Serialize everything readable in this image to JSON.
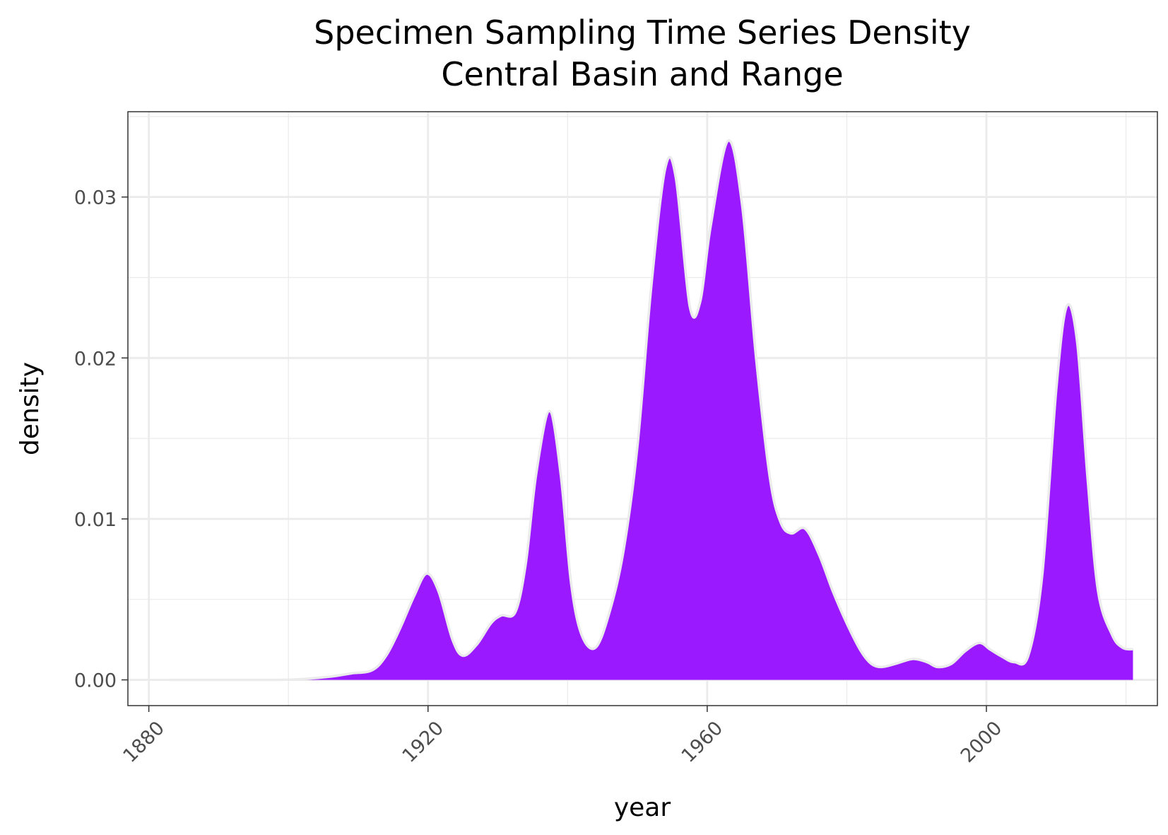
{
  "chart_data": {
    "type": "area",
    "title": "Specimen Sampling Time Series Density",
    "subtitle": "Central Basin and Range",
    "xlabel": "year",
    "ylabel": "density",
    "xlim": [
      1877,
      2024.5
    ],
    "ylim": [
      -0.0016,
      0.0353
    ],
    "x_ticks": [
      1880,
      1920,
      1960,
      2000
    ],
    "x_tick_labels": [
      "1880",
      "1920",
      "1960",
      "2000"
    ],
    "y_ticks": [
      0,
      0.01,
      0.02,
      0.03
    ],
    "y_tick_labels": [
      "0.00",
      "0.01",
      "0.02",
      "0.03"
    ],
    "grid": true,
    "legend": "none",
    "fill_color": "#9B19FF",
    "outline_color": "#EBEBEB",
    "x": [
      1883,
      1890,
      1898,
      1902,
      1906,
      1909,
      1912,
      1914,
      1916,
      1918,
      1919.8,
      1921.5,
      1923.5,
      1925,
      1927,
      1929,
      1930.5,
      1932.5,
      1934,
      1935.5,
      1937.4,
      1939,
      1940.5,
      1942,
      1944,
      1946,
      1948,
      1950,
      1952,
      1954,
      1955.5,
      1957.5,
      1959,
      1960.5,
      1963,
      1965,
      1967,
      1969,
      1970.5,
      1972,
      1974,
      1976,
      1978,
      1980,
      1982,
      1983.5,
      1985,
      1987,
      1989.5,
      1991.5,
      1993,
      1995,
      1997,
      1999,
      2000.5,
      2002,
      2004,
      2006,
      2008,
      2010,
      2011.5,
      2013,
      2014.5,
      2016,
      2018,
      2019.5,
      2021
    ],
    "y": [
      0,
      0,
      0,
      5e-05,
      0.0002,
      0.0004,
      0.0006,
      0.0015,
      0.0032,
      0.0052,
      0.0066,
      0.0055,
      0.0025,
      0.0015,
      0.0022,
      0.0035,
      0.004,
      0.0042,
      0.0072,
      0.0128,
      0.0167,
      0.0128,
      0.006,
      0.0028,
      0.002,
      0.0042,
      0.008,
      0.0145,
      0.0245,
      0.0318,
      0.0312,
      0.0232,
      0.0235,
      0.0282,
      0.0335,
      0.0295,
      0.02,
      0.0125,
      0.0098,
      0.0091,
      0.0094,
      0.0078,
      0.0055,
      0.0035,
      0.0018,
      0.001,
      0.0008,
      0.001,
      0.0013,
      0.0011,
      0.0008,
      0.001,
      0.0018,
      0.0023,
      0.0019,
      0.0015,
      0.0011,
      0.0015,
      0.0065,
      0.018,
      0.0232,
      0.021,
      0.0125,
      0.0055,
      0.0028,
      0.002,
      0.0019
    ]
  }
}
